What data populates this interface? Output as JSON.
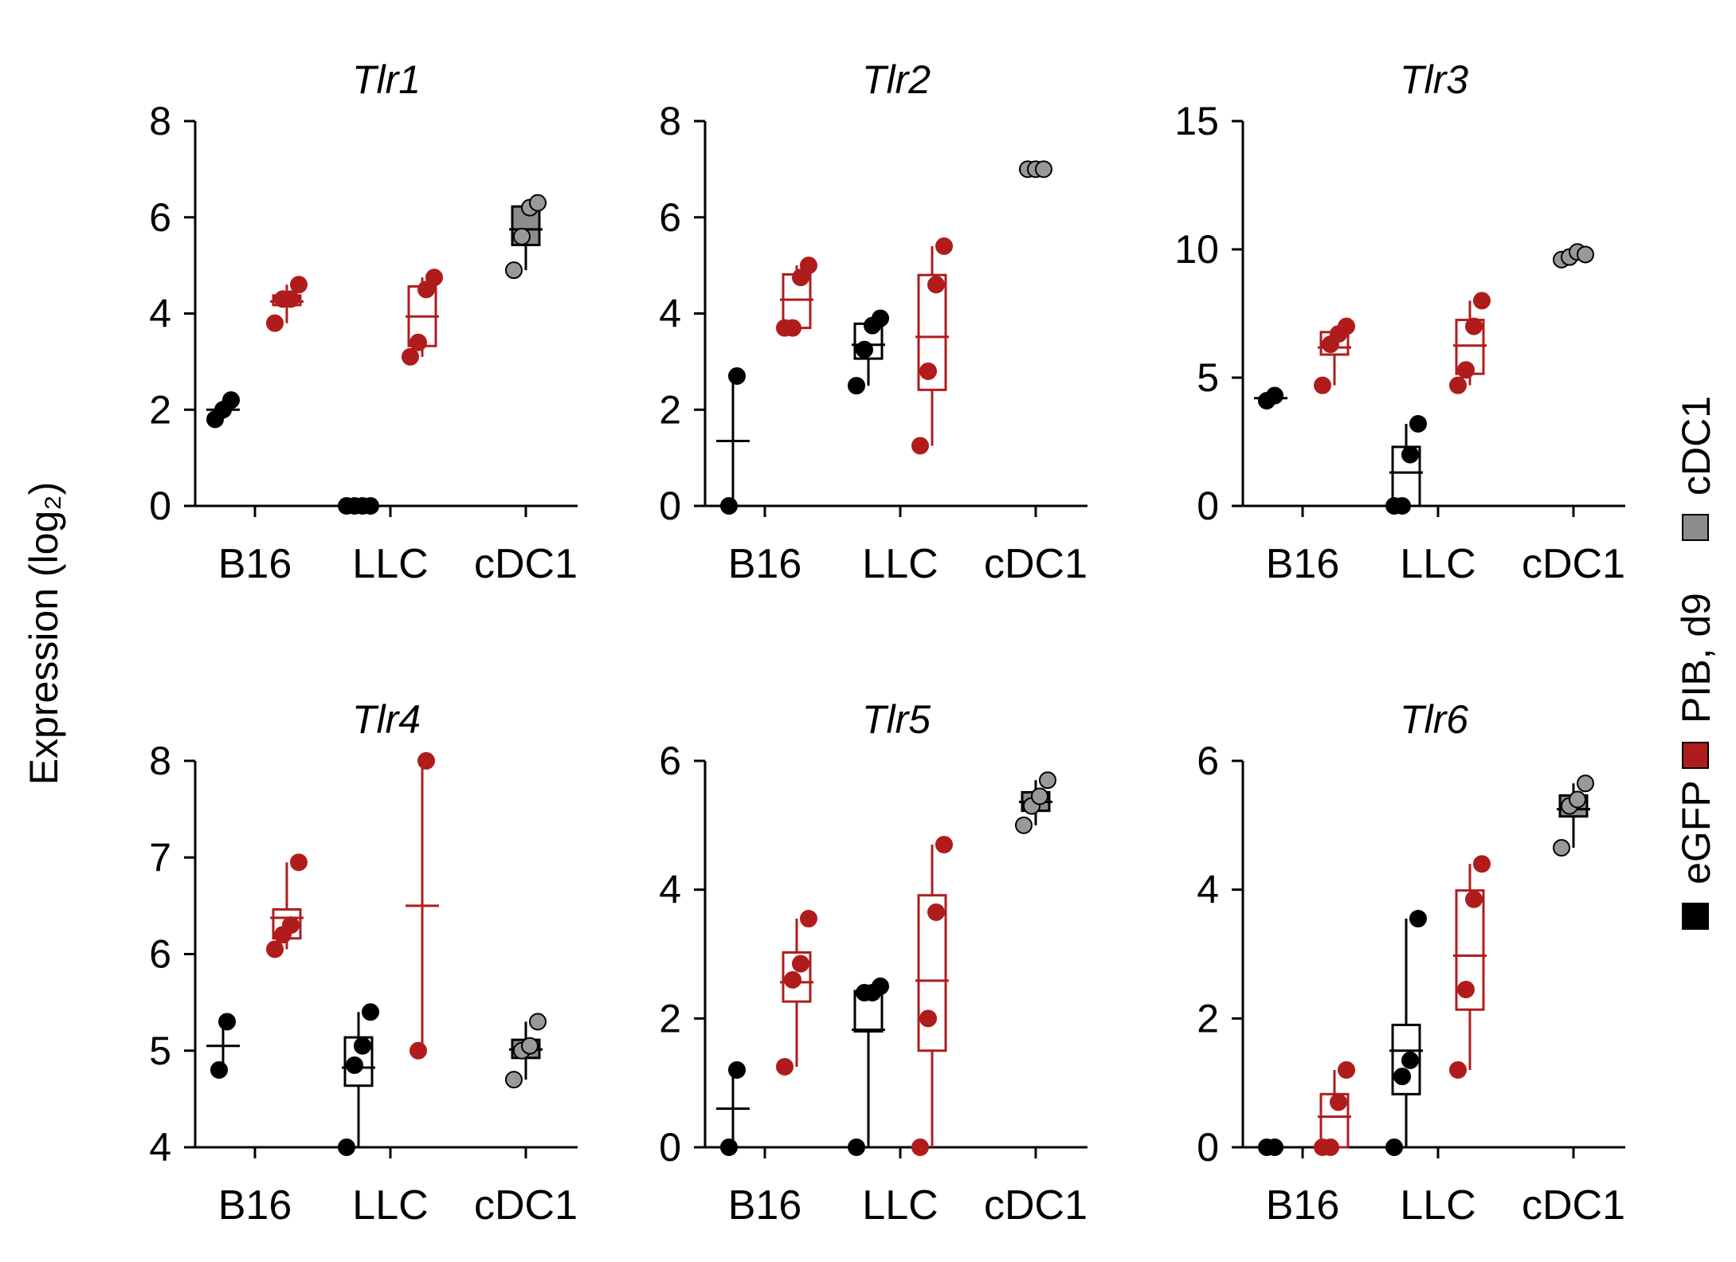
{
  "y_axis_label": "Expression (log₂)",
  "legend": {
    "items": [
      {
        "label": "eGFP",
        "color": "#000000"
      },
      {
        "label": "PIB, d9",
        "color": "#b01c1c"
      },
      {
        "label": "cDC1",
        "color": "#8c8c8c"
      }
    ]
  },
  "colors": {
    "egfp": "#000000",
    "pib": "#b01c1c",
    "cdc1_fill": "#8c8c8c",
    "cdc1_point": "#999999"
  },
  "chart_data": [
    {
      "type": "box",
      "title": "Tlr1",
      "ylim": [
        0,
        8
      ],
      "yticks": [
        0,
        2,
        4,
        6,
        8
      ],
      "categories": [
        "B16",
        "LLC",
        "cDC1"
      ],
      "groups": [
        {
          "category": "B16",
          "series": "eGFP",
          "points": [
            1.8,
            2.0,
            2.2
          ]
        },
        {
          "category": "B16",
          "series": "PIB, d9",
          "points": [
            3.8,
            4.3,
            4.3,
            4.6
          ]
        },
        {
          "category": "LLC",
          "series": "eGFP",
          "points": [
            0,
            0,
            0,
            0
          ]
        },
        {
          "category": "LLC",
          "series": "PIB, d9",
          "points": [
            3.1,
            3.4,
            4.5,
            4.75
          ]
        },
        {
          "category": "cDC1",
          "series": "cDC1",
          "points": [
            4.9,
            5.6,
            6.2,
            6.3
          ]
        }
      ]
    },
    {
      "type": "box",
      "title": "Tlr2",
      "ylim": [
        0,
        8
      ],
      "yticks": [
        0,
        2,
        4,
        6,
        8
      ],
      "categories": [
        "B16",
        "LLC",
        "cDC1"
      ],
      "groups": [
        {
          "category": "B16",
          "series": "eGFP",
          "points": [
            0,
            2.7
          ]
        },
        {
          "category": "B16",
          "series": "PIB, d9",
          "points": [
            3.7,
            3.7,
            4.75,
            5.0
          ]
        },
        {
          "category": "LLC",
          "series": "eGFP",
          "points": [
            2.5,
            3.25,
            3.75,
            3.9
          ]
        },
        {
          "category": "LLC",
          "series": "PIB, d9",
          "points": [
            1.25,
            2.8,
            4.6,
            5.4
          ]
        },
        {
          "category": "cDC1",
          "series": "cDC1",
          "points": [
            7.0,
            7.0,
            7.0
          ]
        }
      ]
    },
    {
      "type": "box",
      "title": "Tlr3",
      "ylim": [
        0,
        15
      ],
      "yticks": [
        0,
        5,
        10,
        15
      ],
      "categories": [
        "B16",
        "LLC",
        "cDC1"
      ],
      "groups": [
        {
          "category": "B16",
          "series": "eGFP",
          "points": [
            4.1,
            4.3
          ]
        },
        {
          "category": "B16",
          "series": "PIB, d9",
          "points": [
            4.7,
            6.3,
            6.7,
            7.0
          ]
        },
        {
          "category": "LLC",
          "series": "eGFP",
          "points": [
            0,
            0,
            2.0,
            3.2
          ]
        },
        {
          "category": "LLC",
          "series": "PIB, d9",
          "points": [
            4.7,
            5.3,
            7.0,
            8.0
          ]
        },
        {
          "category": "cDC1",
          "series": "cDC1",
          "points": [
            9.6,
            9.7,
            9.9,
            9.8
          ]
        }
      ]
    },
    {
      "type": "box",
      "title": "Tlr4",
      "ylim": [
        4,
        8
      ],
      "yticks": [
        4,
        5,
        6,
        7,
        8
      ],
      "categories": [
        "B16",
        "LLC",
        "cDC1"
      ],
      "groups": [
        {
          "category": "B16",
          "series": "eGFP",
          "points": [
            4.8,
            5.3
          ]
        },
        {
          "category": "B16",
          "series": "PIB, d9",
          "points": [
            6.05,
            6.2,
            6.3,
            6.95
          ]
        },
        {
          "category": "LLC",
          "series": "eGFP",
          "points": [
            4.0,
            4.85,
            5.05,
            5.4
          ]
        },
        {
          "category": "LLC",
          "series": "PIB, d9",
          "points": [
            5.0,
            8.0
          ]
        },
        {
          "category": "cDC1",
          "series": "cDC1",
          "points": [
            4.7,
            5.0,
            5.05,
            5.3
          ]
        }
      ]
    },
    {
      "type": "box",
      "title": "Tlr5",
      "ylim": [
        0,
        6
      ],
      "yticks": [
        0,
        2,
        4,
        6
      ],
      "categories": [
        "B16",
        "LLC",
        "cDC1"
      ],
      "groups": [
        {
          "category": "B16",
          "series": "eGFP",
          "points": [
            0,
            1.2
          ]
        },
        {
          "category": "B16",
          "series": "PIB, d9",
          "points": [
            1.25,
            2.6,
            2.85,
            3.55
          ]
        },
        {
          "category": "LLC",
          "series": "eGFP",
          "points": [
            0,
            2.4,
            2.4,
            2.5
          ]
        },
        {
          "category": "LLC",
          "series": "PIB, d9",
          "points": [
            0,
            2.0,
            3.65,
            4.7
          ]
        },
        {
          "category": "cDC1",
          "series": "cDC1",
          "points": [
            5.0,
            5.3,
            5.45,
            5.7
          ]
        }
      ]
    },
    {
      "type": "box",
      "title": "Tlr6",
      "ylim": [
        0,
        6
      ],
      "yticks": [
        0,
        2,
        4,
        6
      ],
      "categories": [
        "B16",
        "LLC",
        "cDC1"
      ],
      "groups": [
        {
          "category": "B16",
          "series": "eGFP",
          "points": [
            0,
            0
          ]
        },
        {
          "category": "B16",
          "series": "PIB, d9",
          "points": [
            0,
            0,
            0.7,
            1.2
          ]
        },
        {
          "category": "LLC",
          "series": "eGFP",
          "points": [
            0,
            1.1,
            1.35,
            3.55
          ]
        },
        {
          "category": "LLC",
          "series": "PIB, d9",
          "points": [
            1.2,
            2.45,
            3.85,
            4.4
          ]
        },
        {
          "category": "cDC1",
          "series": "cDC1",
          "points": [
            4.65,
            5.3,
            5.4,
            5.65
          ]
        }
      ]
    }
  ]
}
